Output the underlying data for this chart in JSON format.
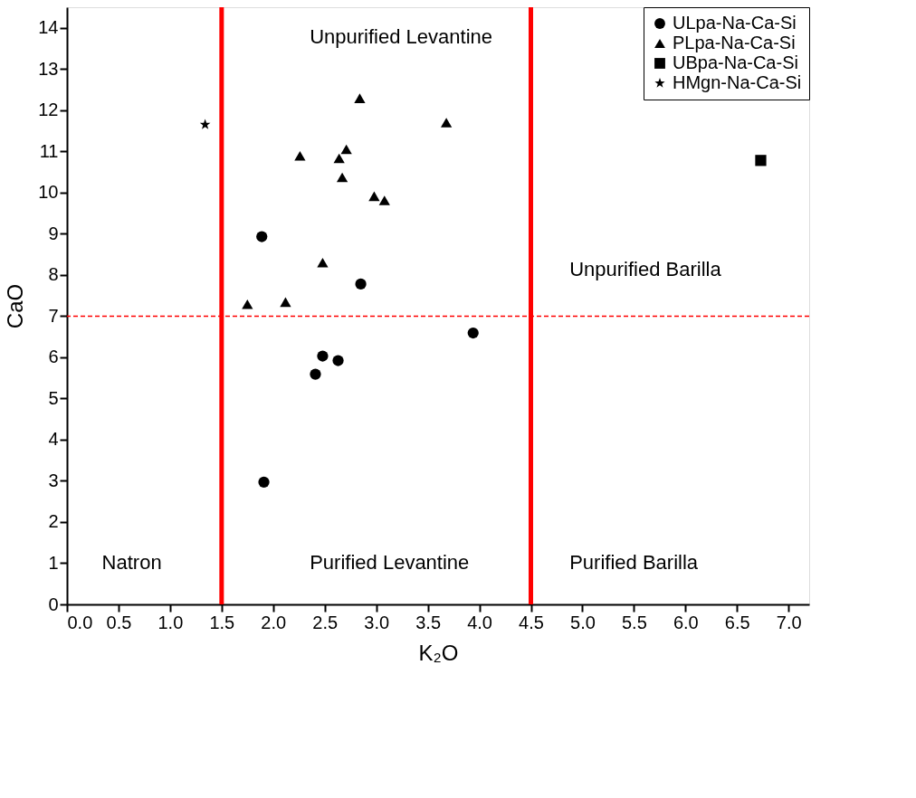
{
  "chart_data": {
    "type": "scatter",
    "xlabel": "K₂O",
    "ylabel": "CaO",
    "xlim": [
      0,
      7.2
    ],
    "ylim": [
      0,
      14.5
    ],
    "xticks": [
      {
        "value": 0,
        "label": "0.0"
      },
      0.5,
      {
        "value": 1,
        "label": "1.0"
      },
      1.5,
      {
        "value": 2,
        "label": "2.0"
      },
      2.5,
      {
        "value": 3,
        "label": "3.0"
      },
      3.5,
      {
        "value": 4,
        "label": "4.0"
      },
      4.5,
      {
        "value": 5,
        "label": "5.0"
      },
      5.5,
      {
        "value": 6,
        "label": "6.0"
      },
      6.5,
      {
        "value": 7,
        "label": "7.0"
      }
    ],
    "yticks": [
      0,
      1,
      2,
      3,
      4,
      5,
      6,
      7,
      8,
      9,
      10,
      11,
      12,
      13,
      14
    ],
    "legend": "top right",
    "series": [
      {
        "name": "ULpa-Na-Ca-Si",
        "color": "#000000",
        "marker": "circle",
        "x": [
          1.89,
          2.85,
          1.91,
          2.41,
          2.48,
          2.63,
          3.94
        ],
        "values": [
          8.93,
          7.78,
          2.97,
          5.59,
          6.03,
          5.92,
          6.59
        ]
      },
      {
        "name": "PLpa-Na-Ca-Si",
        "color": "#000000",
        "marker": "triangle",
        "x": [
          2.84,
          2.26,
          2.64,
          2.71,
          2.67,
          2.98,
          3.08,
          2.48,
          1.75,
          2.12,
          3.68
        ],
        "values": [
          12.29,
          10.89,
          10.83,
          11.05,
          10.37,
          9.91,
          9.81,
          8.3,
          7.29,
          7.34,
          11.7
        ]
      },
      {
        "name": "UBpa-Na-Ca-Si",
        "color": "#000000",
        "marker": "square",
        "x": [
          6.73
        ],
        "values": [
          10.78
        ]
      },
      {
        "name": "HMgn-Na-Ca-Si",
        "color": "#000000",
        "marker": "star",
        "x": [
          1.34
        ],
        "values": [
          11.65
        ]
      }
    ],
    "ref_lines": [
      {
        "axis": "x",
        "value": 1.5,
        "color": "#ff0000",
        "line_style": "solid"
      },
      {
        "axis": "x",
        "value": 4.5,
        "color": "#ff0000",
        "line_style": "solid"
      },
      {
        "axis": "y",
        "value": 7,
        "color": "#ff0000",
        "line_style": "dashed"
      }
    ],
    "annotations": [
      "Unpurified Levantine",
      "Unpurified Barilla",
      "Natron",
      "Purified Levantine",
      "Purified Barilla"
    ]
  }
}
